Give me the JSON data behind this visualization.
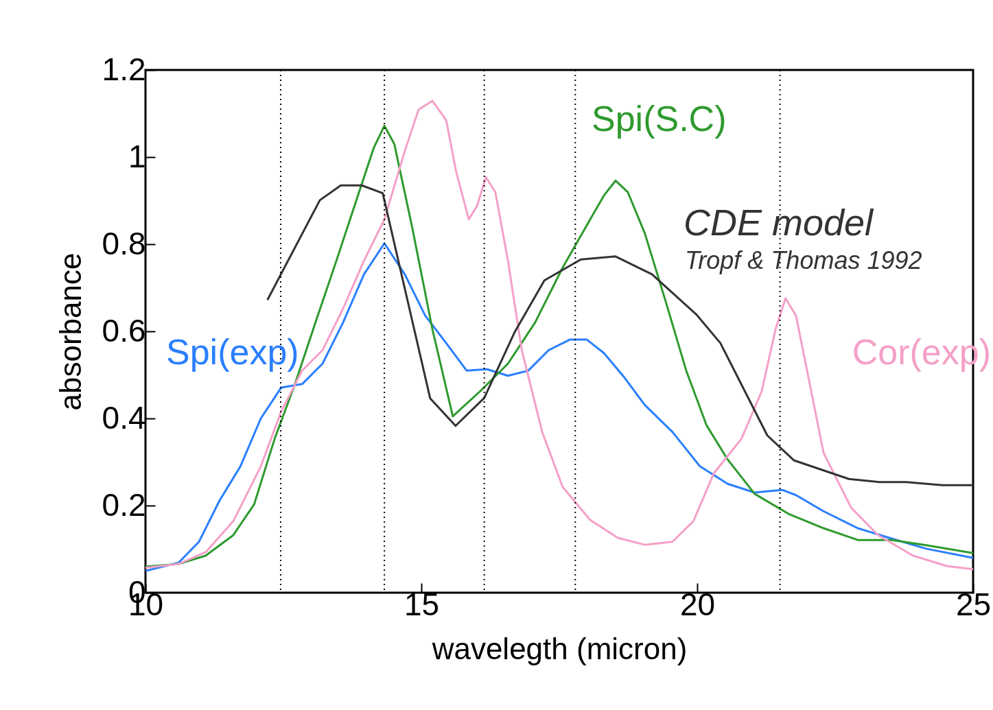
{
  "chart_data": {
    "type": "line",
    "xlabel": "wavelegth (micron)",
    "ylabel": "absorbance",
    "xlim": [
      10,
      25
    ],
    "xticks": [
      10,
      15,
      20,
      25
    ],
    "ylim": [
      0,
      1.2
    ],
    "yticks": [
      0,
      0.2,
      0.4,
      0.6,
      0.8,
      1,
      1.2
    ],
    "grid": false,
    "legend": false,
    "marker": "none",
    "line_style": "solid",
    "series": [
      {
        "name": "Spi(exp)",
        "color": "#2a7fff",
        "x": [
          10,
          10.6,
          10.97,
          11.34,
          11.72,
          12.09,
          12.46,
          12.84,
          13.21,
          13.58,
          13.96,
          14.33,
          14.7,
          15.07,
          15.45,
          15.82,
          16.19,
          16.57,
          16.94,
          17.31,
          17.69,
          18,
          18.31,
          18.68,
          19.05,
          19.55,
          20.05,
          20.55,
          21.04,
          21.29,
          21.54,
          21.79,
          22.29,
          22.91,
          23.53,
          24.15,
          25
        ],
        "values": [
          0.05,
          0.069,
          0.117,
          0.211,
          0.29,
          0.4,
          0.471,
          0.479,
          0.526,
          0.62,
          0.731,
          0.802,
          0.731,
          0.636,
          0.573,
          0.51,
          0.513,
          0.498,
          0.51,
          0.557,
          0.581,
          0.581,
          0.55,
          0.494,
          0.431,
          0.369,
          0.29,
          0.25,
          0.23,
          0.233,
          0.236,
          0.224,
          0.187,
          0.148,
          0.124,
          0.101,
          0.08
        ]
      },
      {
        "name": "Spi(S.C)",
        "color": "#2e9a2e",
        "x": [
          10,
          10.6,
          11.09,
          11.59,
          11.97,
          12.34,
          12.71,
          13.08,
          13.46,
          13.83,
          14.14,
          14.33,
          14.51,
          14.83,
          15.2,
          15.57,
          16.07,
          16.57,
          17.06,
          17.56,
          18.06,
          18.31,
          18.52,
          18.74,
          19.05,
          19.43,
          19.8,
          20.17,
          20.55,
          21.04,
          21.67,
          22.29,
          22.91,
          23.53,
          24.15,
          25
        ],
        "values": [
          0.06,
          0.066,
          0.085,
          0.132,
          0.203,
          0.353,
          0.479,
          0.62,
          0.762,
          0.904,
          1.022,
          1.072,
          1.03,
          0.841,
          0.605,
          0.405,
          0.463,
          0.526,
          0.62,
          0.746,
          0.857,
          0.912,
          0.946,
          0.92,
          0.825,
          0.668,
          0.51,
          0.384,
          0.306,
          0.227,
          0.18,
          0.148,
          0.121,
          0.121,
          0.109,
          0.091
        ]
      },
      {
        "name": "Cor(exp)",
        "color": "#f4a0c8",
        "x": [
          10,
          10.6,
          11.09,
          11.59,
          12.09,
          12.46,
          12.84,
          13.21,
          13.58,
          13.96,
          14.33,
          14.7,
          14.95,
          15.2,
          15.45,
          15.63,
          15.86,
          16.01,
          16.17,
          16.34,
          16.57,
          16.82,
          17.19,
          17.56,
          18.06,
          18.56,
          19.05,
          19.55,
          19.93,
          20.3,
          20.8,
          21.17,
          21.42,
          21.6,
          21.79,
          22.04,
          22.29,
          22.79,
          23.28,
          23.91,
          24.53,
          25
        ],
        "values": [
          0.057,
          0.066,
          0.093,
          0.164,
          0.29,
          0.416,
          0.51,
          0.557,
          0.652,
          0.762,
          0.857,
          1.014,
          1.109,
          1.129,
          1.085,
          0.967,
          0.857,
          0.888,
          0.954,
          0.92,
          0.762,
          0.557,
          0.369,
          0.243,
          0.167,
          0.126,
          0.11,
          0.117,
          0.164,
          0.274,
          0.353,
          0.463,
          0.605,
          0.676,
          0.636,
          0.479,
          0.321,
          0.195,
          0.132,
          0.085,
          0.061,
          0.054
        ]
      },
      {
        "name": "CDE model",
        "color": "#333333",
        "x": [
          12.21,
          13.16,
          13.54,
          13.92,
          14.3,
          15.16,
          15.62,
          16.14,
          16.69,
          17.23,
          17.89,
          18.52,
          19.18,
          19.99,
          20.42,
          21.27,
          21.75,
          22.75,
          23.3,
          23.79,
          24.44,
          25
        ],
        "values": [
          0.672,
          0.901,
          0.935,
          0.935,
          0.917,
          0.446,
          0.383,
          0.447,
          0.598,
          0.717,
          0.765,
          0.772,
          0.731,
          0.638,
          0.573,
          0.361,
          0.304,
          0.261,
          0.254,
          0.254,
          0.247,
          0.247
        ]
      }
    ],
    "ref_lines": [
      {
        "axis": "x",
        "value": 12.45,
        "line_style": "dotted"
      },
      {
        "axis": "x",
        "value": 14.33,
        "line_style": "dotted"
      },
      {
        "axis": "x",
        "value": 16.14,
        "line_style": "dotted"
      },
      {
        "axis": "x",
        "value": 17.79,
        "line_style": "dotted"
      },
      {
        "axis": "x",
        "value": 21.5,
        "line_style": "dotted"
      }
    ],
    "annotations": [
      "Tropf & Thomas 1992"
    ]
  }
}
